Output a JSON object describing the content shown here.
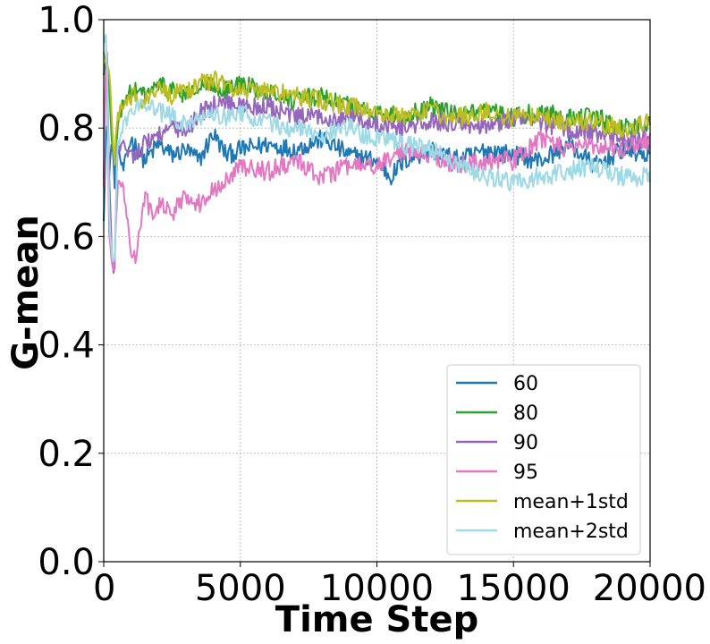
{
  "chart_data": {
    "type": "line",
    "title": "",
    "xlabel": "Time Step",
    "ylabel": "G-mean",
    "xlim": [
      0,
      20000
    ],
    "ylim": [
      0.0,
      1.0
    ],
    "xticks": [
      0,
      5000,
      10000,
      15000,
      20000
    ],
    "xtick_labels": [
      "0",
      "5000",
      "10000",
      "15000",
      "20000"
    ],
    "yticks": [
      0.0,
      0.2,
      0.4,
      0.6,
      0.8,
      1.0
    ],
    "ytick_labels": [
      "0.0",
      "0.2",
      "0.4",
      "0.6",
      "0.8",
      "1.0"
    ],
    "grid": true,
    "legend_position": "bottom-right",
    "series": [
      {
        "name": "60",
        "color": "#1f77b4",
        "x": [
          0,
          100,
          200,
          300,
          400,
          500,
          700,
          1000,
          1500,
          2000,
          2500,
          3000,
          3500,
          4000,
          4500,
          5000,
          6000,
          7000,
          8000,
          9000,
          10000,
          10500,
          11000,
          12000,
          13000,
          14000,
          15000,
          16000,
          17000,
          18000,
          19000,
          20000
        ],
        "y": [
          0.64,
          0.82,
          0.72,
          0.78,
          0.7,
          0.77,
          0.72,
          0.78,
          0.74,
          0.77,
          0.75,
          0.76,
          0.74,
          0.79,
          0.75,
          0.76,
          0.77,
          0.76,
          0.78,
          0.75,
          0.74,
          0.71,
          0.74,
          0.76,
          0.74,
          0.76,
          0.75,
          0.74,
          0.77,
          0.73,
          0.76,
          0.75
        ]
      },
      {
        "name": "80",
        "color": "#2ca02c",
        "x": [
          0,
          100,
          200,
          300,
          400,
          500,
          700,
          1000,
          1500,
          2000,
          2500,
          3000,
          3500,
          4000,
          4500,
          5000,
          6000,
          7000,
          8000,
          9000,
          10000,
          11000,
          12000,
          13000,
          14000,
          15000,
          16000,
          17000,
          18000,
          19000,
          20000
        ],
        "y": [
          0.9,
          0.93,
          0.88,
          0.76,
          0.74,
          0.79,
          0.85,
          0.87,
          0.86,
          0.88,
          0.87,
          0.86,
          0.87,
          0.88,
          0.87,
          0.88,
          0.87,
          0.85,
          0.86,
          0.84,
          0.83,
          0.82,
          0.84,
          0.82,
          0.83,
          0.82,
          0.83,
          0.82,
          0.82,
          0.8,
          0.81
        ]
      },
      {
        "name": "90",
        "color": "#9467bd",
        "x": [
          0,
          100,
          200,
          300,
          400,
          500,
          700,
          1000,
          1500,
          2000,
          2500,
          3000,
          3500,
          4000,
          4500,
          5000,
          6000,
          7000,
          8000,
          9000,
          10000,
          11000,
          12000,
          13000,
          14000,
          15000,
          16000,
          17000,
          18000,
          19000,
          20000
        ],
        "y": [
          0.7,
          0.98,
          0.72,
          0.55,
          0.54,
          0.76,
          0.77,
          0.75,
          0.77,
          0.79,
          0.8,
          0.79,
          0.83,
          0.84,
          0.85,
          0.84,
          0.84,
          0.82,
          0.82,
          0.82,
          0.81,
          0.8,
          0.81,
          0.81,
          0.8,
          0.82,
          0.81,
          0.8,
          0.79,
          0.78,
          0.78
        ]
      },
      {
        "name": "95",
        "color": "#e377c2",
        "x": [
          0,
          100,
          200,
          300,
          400,
          500,
          700,
          1000,
          1200,
          1500,
          1800,
          2000,
          2500,
          3000,
          3500,
          4000,
          4500,
          5000,
          6000,
          7000,
          8000,
          9000,
          10000,
          11000,
          12000,
          13000,
          14000,
          15000,
          16000,
          17000,
          18000,
          19000,
          20000
        ],
        "y": [
          0.7,
          0.96,
          0.6,
          0.54,
          0.55,
          0.69,
          0.7,
          0.57,
          0.56,
          0.68,
          0.63,
          0.66,
          0.64,
          0.68,
          0.66,
          0.69,
          0.7,
          0.73,
          0.72,
          0.74,
          0.71,
          0.73,
          0.73,
          0.76,
          0.75,
          0.73,
          0.74,
          0.74,
          0.78,
          0.76,
          0.77,
          0.76,
          0.78
        ]
      },
      {
        "name": "mean+1std",
        "color": "#bcbd22",
        "x": [
          0,
          100,
          200,
          300,
          400,
          500,
          700,
          1000,
          1500,
          2000,
          2500,
          3000,
          3500,
          4000,
          4500,
          5000,
          6000,
          7000,
          8000,
          9000,
          10000,
          11000,
          12000,
          13000,
          14000,
          15000,
          16000,
          17000,
          18000,
          19000,
          20000
        ],
        "y": [
          0.94,
          0.92,
          0.91,
          0.8,
          0.74,
          0.82,
          0.84,
          0.86,
          0.85,
          0.87,
          0.86,
          0.87,
          0.88,
          0.89,
          0.88,
          0.87,
          0.87,
          0.86,
          0.85,
          0.84,
          0.83,
          0.82,
          0.83,
          0.82,
          0.83,
          0.82,
          0.82,
          0.81,
          0.81,
          0.8,
          0.81
        ]
      },
      {
        "name": "mean+2std",
        "color": "#9edae5",
        "x": [
          0,
          100,
          200,
          300,
          400,
          500,
          700,
          1000,
          1500,
          2000,
          2500,
          3000,
          3500,
          4000,
          4500,
          5000,
          6000,
          7000,
          8000,
          9000,
          10000,
          11000,
          12000,
          13000,
          14000,
          15000,
          16000,
          17000,
          18000,
          19000,
          20000
        ],
        "y": [
          0.96,
          0.98,
          0.65,
          0.55,
          0.56,
          0.77,
          0.8,
          0.83,
          0.85,
          0.83,
          0.82,
          0.81,
          0.82,
          0.83,
          0.82,
          0.83,
          0.81,
          0.8,
          0.79,
          0.8,
          0.78,
          0.77,
          0.76,
          0.73,
          0.71,
          0.7,
          0.71,
          0.72,
          0.73,
          0.71,
          0.71
        ]
      }
    ]
  }
}
